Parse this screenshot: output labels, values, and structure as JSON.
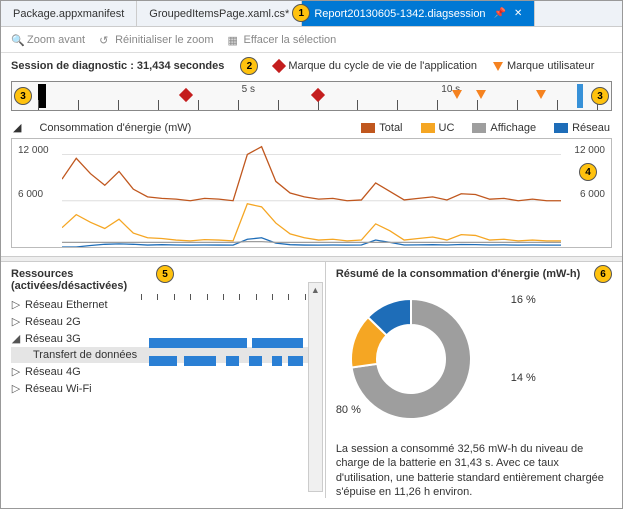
{
  "tabs": [
    {
      "label": "Package.appxmanifest",
      "active": false
    },
    {
      "label": "GroupedItemsPage.xaml.cs*",
      "active": false
    },
    {
      "label": "Report20130605-1342.diagsession",
      "active": true
    }
  ],
  "toolbar": {
    "zoom_in": "Zoom avant",
    "reset_zoom": "Réinitialiser le zoom",
    "clear_sel": "Effacer la sélection"
  },
  "session": {
    "label": "Session de diagnostic : 31,434 secondes",
    "app_lifecycle_label": "Marque du cycle de vie de l'application",
    "user_mark_label": "Marque utilisateur",
    "app_mark_color": "#c41e1e",
    "user_mark_color": "#f58220"
  },
  "timeline": {
    "width_s": 14,
    "ticks_s": [
      0,
      1,
      2,
      3,
      4,
      5,
      6,
      7,
      8,
      9,
      10,
      11,
      12,
      13,
      14
    ],
    "labels": [
      {
        "s": 5,
        "text": "5 s"
      },
      {
        "s": 10,
        "text": "10 s"
      }
    ],
    "app_marks_s": [
      3.7,
      7.0
    ],
    "user_marks_s": [
      10.5,
      11.1,
      12.6
    ]
  },
  "callouts": {
    "1": "1",
    "2": "2",
    "3a": "3",
    "3b": "3",
    "4": "4",
    "5": "5",
    "6": "6"
  },
  "energy": {
    "title": "Consommation d'énergie (mW)",
    "series": {
      "total": {
        "label": "Total",
        "color": "#c0571e"
      },
      "uc": {
        "label": "UC",
        "color": "#f5a623"
      },
      "disp": {
        "label": "Affichage",
        "color": "#9e9e9e"
      },
      "net": {
        "label": "Réseau",
        "color": "#1e6db8"
      }
    },
    "y_ticks": [
      6000,
      12000
    ],
    "y_tick_labels": [
      "6 000",
      "12 000"
    ],
    "y_max": 14000,
    "data": {
      "total": [
        8800,
        11500,
        9500,
        8000,
        9800,
        7500,
        6500,
        6300,
        6200,
        6000,
        6300,
        6200,
        6000,
        12000,
        13000,
        8500,
        7000,
        6500,
        6200,
        6300,
        6000,
        6100,
        8300,
        7200,
        6100,
        6300,
        6500,
        6100,
        6900,
        6800,
        6200,
        6300,
        6000,
        6200,
        6000,
        6000
      ],
      "uc": [
        2500,
        4200,
        3200,
        2400,
        3600,
        1800,
        1200,
        1100,
        900,
        800,
        950,
        900,
        800,
        5600,
        5200,
        3100,
        1700,
        1200,
        900,
        1000,
        800,
        900,
        3000,
        2100,
        900,
        1100,
        1300,
        900,
        1600,
        1500,
        900,
        1000,
        800,
        900,
        800,
        800
      ],
      "disp": [
        600,
        600,
        600,
        600,
        600,
        600,
        600,
        600,
        600,
        600,
        600,
        600,
        600,
        700,
        700,
        600,
        600,
        600,
        600,
        600,
        600,
        600,
        600,
        600,
        600,
        600,
        600,
        600,
        600,
        600,
        600,
        600,
        600,
        600,
        600,
        600
      ],
      "net": [
        0,
        0,
        200,
        350,
        400,
        350,
        250,
        300,
        260,
        240,
        260,
        250,
        240,
        1000,
        1200,
        500,
        300,
        250,
        240,
        260,
        240,
        260,
        900,
        600,
        260,
        280,
        300,
        260,
        320,
        310,
        260,
        270,
        240,
        260,
        240,
        240
      ]
    }
  },
  "resources": {
    "title": "Ressources\n(activées/désactivées)",
    "items": [
      {
        "label": "Réseau Ethernet",
        "expanded": false
      },
      {
        "label": "Réseau 2G",
        "expanded": false
      },
      {
        "label": "Réseau 3G",
        "expanded": true,
        "child": "Transfert de données"
      },
      {
        "label": "Réseau 4G",
        "expanded": false
      },
      {
        "label": "Réseau Wi-Fi",
        "expanded": false
      }
    ],
    "segment_color": "#2a7fd4",
    "g3_segments_a": [
      [
        0.05,
        0.65
      ],
      [
        0.68,
        0.99
      ]
    ],
    "g3_segments_b": [
      [
        0.05,
        0.22
      ],
      [
        0.26,
        0.46
      ],
      [
        0.52,
        0.6
      ],
      [
        0.66,
        0.74
      ],
      [
        0.8,
        0.86
      ],
      [
        0.9,
        0.99
      ]
    ]
  },
  "summary": {
    "title": "Résumé de la consommation d'énergie (mW-h)",
    "slices": [
      {
        "label": "80 %",
        "pct": 80,
        "color": "#9e9e9e"
      },
      {
        "label": "16 %",
        "pct": 16,
        "color": "#f5a623"
      },
      {
        "label": "14 %",
        "pct": 14,
        "color": "#1e6db8"
      }
    ],
    "text": "La session a consommé 32,56 mW-h du niveau de charge de la batterie en 31,43 s. Avec ce taux d'utilisation, une batterie standard entièrement chargée s'épuise en 11,26 h environ."
  }
}
